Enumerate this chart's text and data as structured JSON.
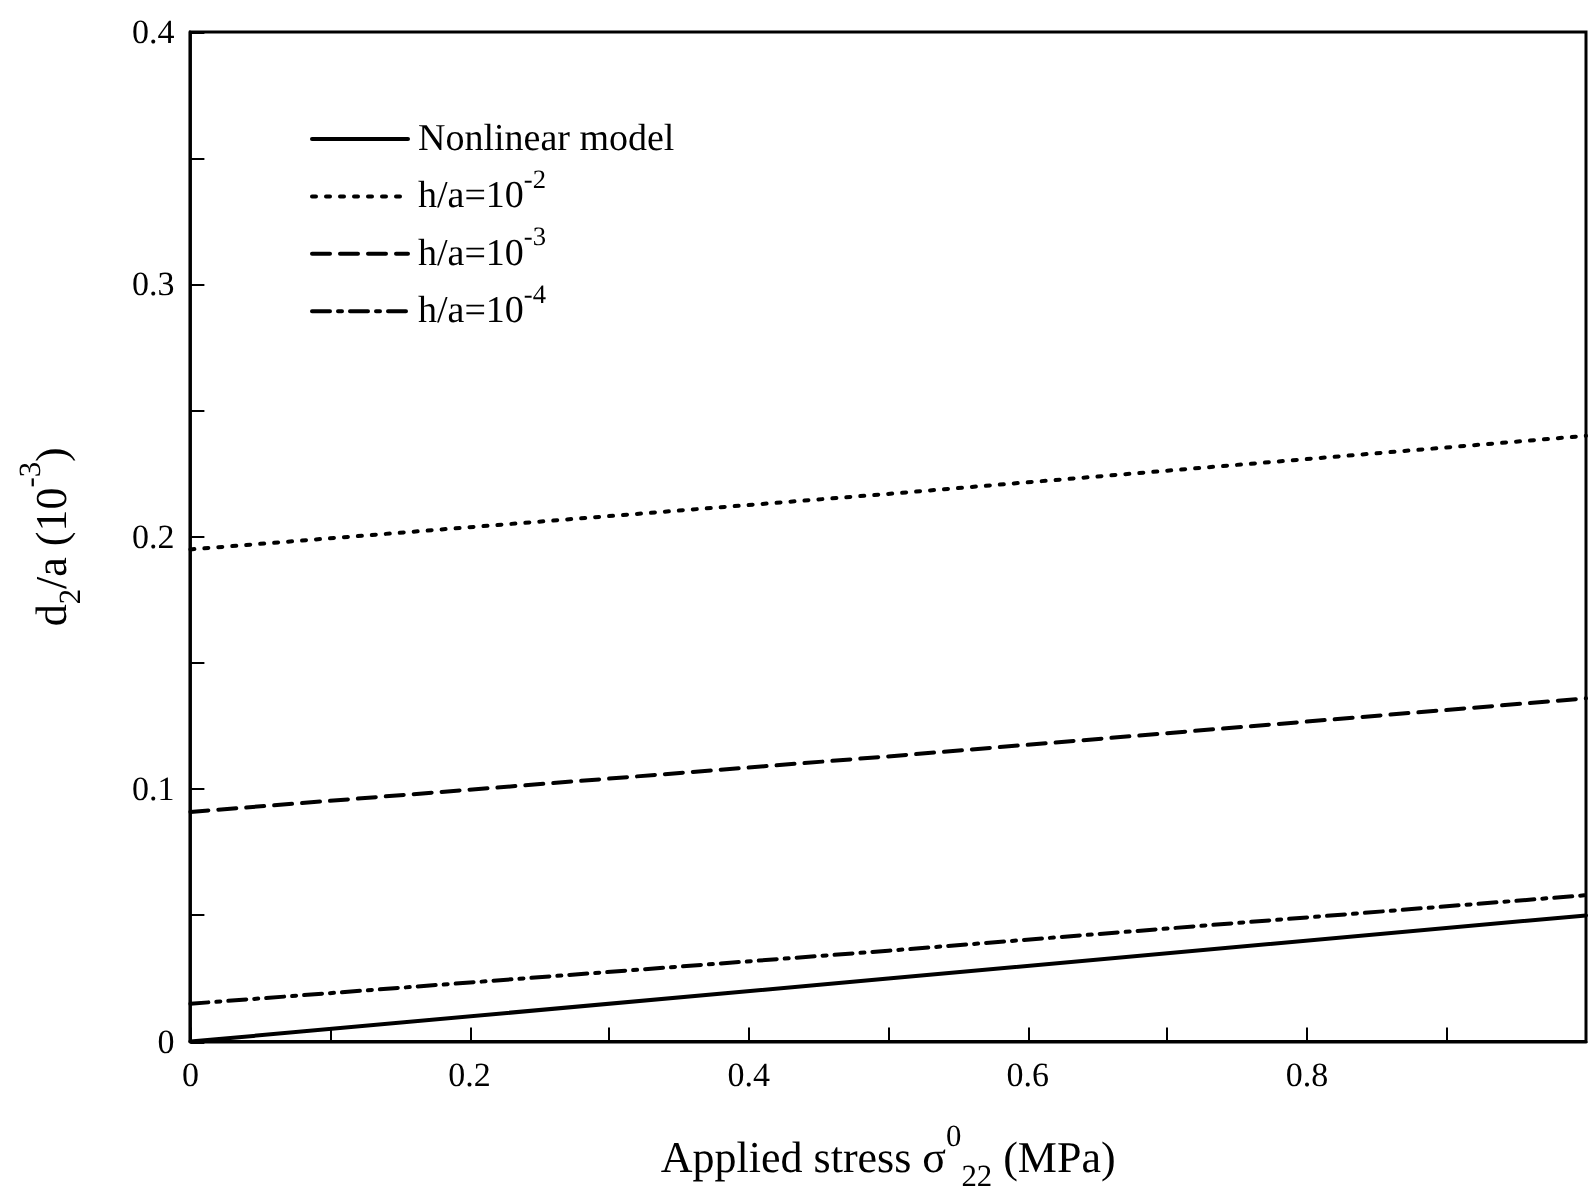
{
  "chart_data": {
    "type": "line",
    "xlabel": "Applied stress σ$^{0}$$_{22}$ (MPa)",
    "ylabel": "d$_{2}$/a (10$^{-3}$)",
    "x": [
      0,
      0.5,
      1
    ],
    "series": [
      {
        "name": "Nonlinear model",
        "color": "#000000",
        "line_style": "solid",
        "values": [
          0,
          0.025,
          0.05
        ]
      },
      {
        "name": "h/a=10$^{-2}$",
        "color": "#000000",
        "line_style": "dotted",
        "values": [
          0.195,
          0.217,
          0.24
        ]
      },
      {
        "name": "h/a=10$^{-3}$",
        "color": "#000000",
        "line_style": "dashed",
        "values": [
          0.091,
          0.113,
          0.136
        ]
      },
      {
        "name": "h/a=10$^{-4}$",
        "color": "#000000",
        "line_style": "dashdot",
        "values": [
          0.015,
          0.036,
          0.058
        ]
      }
    ],
    "xlim": [
      0,
      1
    ],
    "xticks": [
      0,
      {
        "value": 0.1,
        "label": null
      },
      0.2,
      {
        "value": 0.3,
        "label": null
      },
      0.4,
      {
        "value": 0.5,
        "label": null
      },
      0.6,
      {
        "value": 0.7,
        "label": null
      },
      0.8,
      {
        "value": 0.9,
        "label": null
      }
    ],
    "ylim": [
      0,
      0.4
    ],
    "yticks": [
      0,
      {
        "value": 0.05,
        "label": null
      },
      0.1,
      {
        "value": 0.15,
        "label": null
      },
      0.2,
      {
        "value": 0.25,
        "label": null
      },
      0.3,
      {
        "value": 0.35,
        "label": null
      },
      0.4
    ],
    "legend": "top left",
    "grid": false,
    "marker": "none"
  }
}
